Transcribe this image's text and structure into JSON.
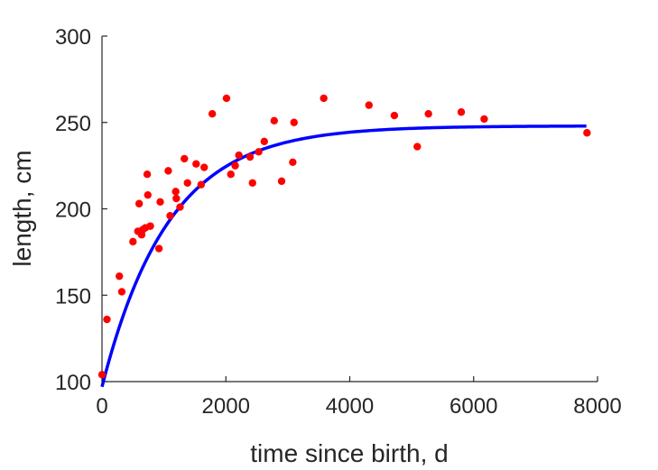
{
  "chart_data": {
    "type": "scatter",
    "xlabel": "time since birth, d",
    "ylabel": "length, cm",
    "xlim": [
      0,
      8000
    ],
    "ylim": [
      100,
      300
    ],
    "xticks": [
      0,
      2000,
      4000,
      6000,
      8000
    ],
    "yticks": [
      100,
      150,
      200,
      250,
      300
    ],
    "grid": false,
    "colors": {
      "points": "#ff0000",
      "fit": "#0000ff",
      "axis": "#262626"
    },
    "points": [
      [
        0,
        104
      ],
      [
        80,
        136
      ],
      [
        280,
        161
      ],
      [
        320,
        152
      ],
      [
        500,
        181
      ],
      [
        580,
        187
      ],
      [
        600,
        203
      ],
      [
        640,
        185
      ],
      [
        660,
        188
      ],
      [
        700,
        189
      ],
      [
        730,
        220
      ],
      [
        740,
        208
      ],
      [
        780,
        190
      ],
      [
        920,
        177
      ],
      [
        940,
        204
      ],
      [
        1070,
        222
      ],
      [
        1100,
        196
      ],
      [
        1190,
        210
      ],
      [
        1200,
        206
      ],
      [
        1260,
        201
      ],
      [
        1330,
        229
      ],
      [
        1380,
        215
      ],
      [
        1520,
        226
      ],
      [
        1600,
        214
      ],
      [
        1650,
        224
      ],
      [
        1780,
        255
      ],
      [
        2010,
        264
      ],
      [
        2080,
        220
      ],
      [
        2150,
        225
      ],
      [
        2210,
        231
      ],
      [
        2390,
        230
      ],
      [
        2430,
        215
      ],
      [
        2530,
        233
      ],
      [
        2620,
        239
      ],
      [
        2780,
        251
      ],
      [
        2900,
        216
      ],
      [
        3080,
        227
      ],
      [
        3100,
        250
      ],
      [
        3580,
        264
      ],
      [
        4310,
        260
      ],
      [
        4720,
        254
      ],
      [
        5090,
        236
      ],
      [
        5270,
        255
      ],
      [
        5800,
        256
      ],
      [
        6170,
        252
      ],
      [
        7830,
        244
      ]
    ],
    "fit": {
      "type": "line",
      "x_range": [
        0,
        7820
      ],
      "y0": 97,
      "y_inf": 248,
      "rate": 0.00093
    }
  }
}
